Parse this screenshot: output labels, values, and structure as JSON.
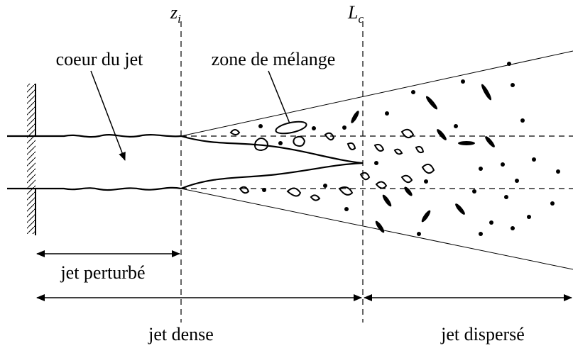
{
  "markers": [
    {
      "symbol": "z",
      "subscript": "i"
    },
    {
      "symbol": "L",
      "subscript": "c"
    }
  ],
  "labels": {
    "core": "coeur du jet",
    "mixing": "zone de mélange",
    "perturbed": "jet perturbé",
    "dense": "jet dense",
    "dispersed": "jet dispersé"
  }
}
